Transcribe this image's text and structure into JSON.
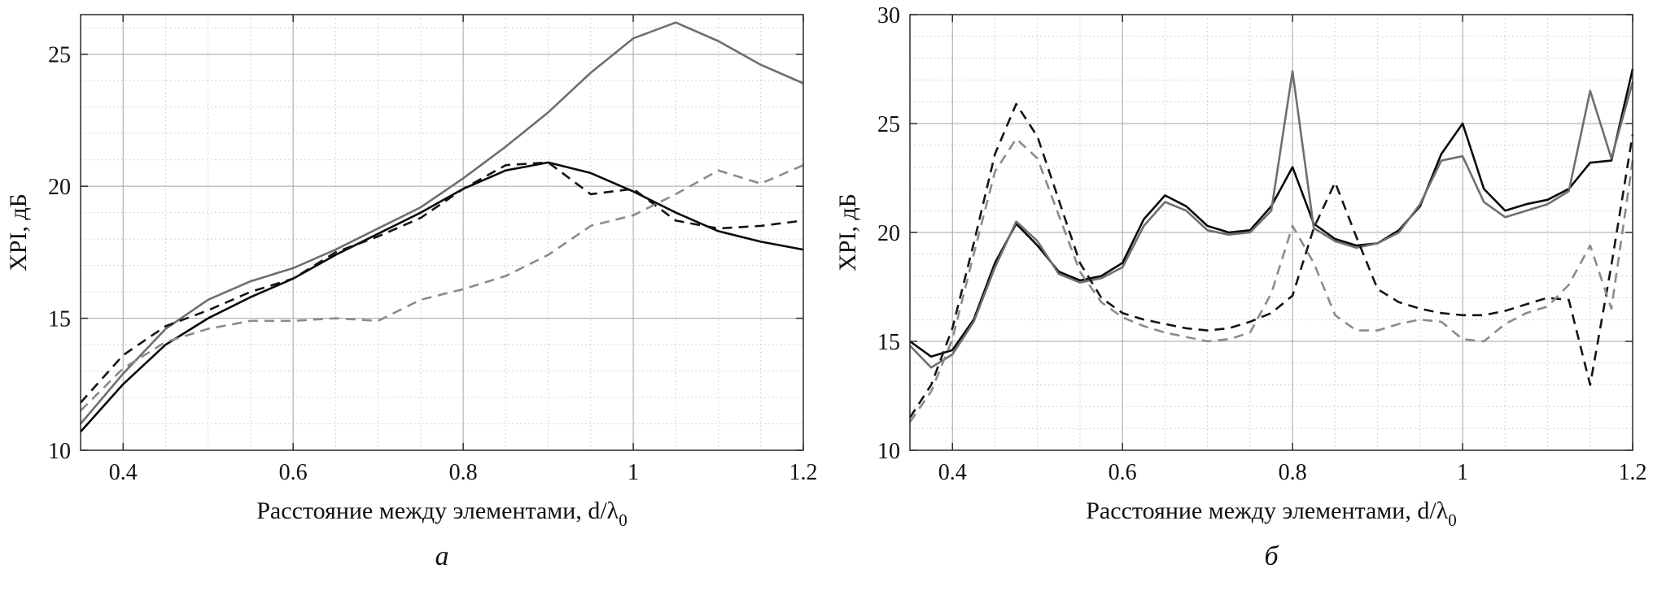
{
  "figure": {
    "description": "Two line plots of cross-polarization isolation (XPI) versus element spacing",
    "captions": [
      "а",
      "б"
    ]
  },
  "chart_data": [
    {
      "type": "line",
      "title": "",
      "caption": "а",
      "xlabel": "Расстояние между элементами, d/λ",
      "xlabel_sub": "0",
      "ylabel": "XPI, дБ",
      "xlim": [
        0.35,
        1.2
      ],
      "ylim": [
        10,
        26.5
      ],
      "xticks": [
        0.4,
        0.6,
        0.8,
        1,
        1.2
      ],
      "xtick_labels": [
        "0.4",
        "0.6",
        "0.8",
        "1",
        "1.2"
      ],
      "yticks": [
        10,
        15,
        20,
        25
      ],
      "ytick_labels": [
        "10",
        "15",
        "20",
        "25"
      ],
      "x_minor_step": 0.05,
      "y_minor_step": 1,
      "grid": "major-solid + minor-dotted",
      "legend": "none",
      "x": [
        0.35,
        0.4,
        0.45,
        0.5,
        0.55,
        0.6,
        0.65,
        0.7,
        0.75,
        0.8,
        0.85,
        0.9,
        0.95,
        1.0,
        1.05,
        1.1,
        1.15,
        1.2
      ],
      "series": [
        {
          "name": "gray-solid",
          "color": "#6f6f6f",
          "dash": "",
          "width": 2.6,
          "values": [
            11.0,
            12.9,
            14.6,
            15.7,
            16.4,
            16.9,
            17.6,
            18.4,
            19.2,
            20.3,
            21.5,
            22.8,
            24.3,
            25.6,
            26.2,
            25.5,
            24.6,
            23.9
          ]
        },
        {
          "name": "black-solid",
          "color": "#0a0a0a",
          "dash": "",
          "width": 2.6,
          "values": [
            10.7,
            12.5,
            14.0,
            15.0,
            15.8,
            16.5,
            17.4,
            18.2,
            19.0,
            19.9,
            20.6,
            20.9,
            20.5,
            19.8,
            19.0,
            18.3,
            17.9,
            17.6
          ]
        },
        {
          "name": "black-dashed",
          "color": "#141414",
          "dash": "12 8",
          "width": 2.6,
          "values": [
            11.8,
            13.6,
            14.7,
            15.3,
            16.0,
            16.5,
            17.5,
            18.1,
            18.8,
            19.9,
            20.8,
            20.9,
            19.7,
            19.9,
            18.7,
            18.4,
            18.5,
            18.7
          ]
        },
        {
          "name": "gray-dashed",
          "color": "#8b8b8b",
          "dash": "12 8",
          "width": 2.6,
          "values": [
            11.5,
            13.1,
            14.1,
            14.6,
            14.9,
            14.9,
            15.0,
            14.9,
            15.7,
            16.1,
            16.6,
            17.4,
            18.5,
            18.9,
            19.7,
            20.6,
            20.1,
            20.8
          ]
        }
      ]
    },
    {
      "type": "line",
      "title": "",
      "caption": "б",
      "xlabel": "Расстояние между элементами, d/λ",
      "xlabel_sub": "0",
      "ylabel": "XPI, дБ",
      "xlim": [
        0.35,
        1.2
      ],
      "ylim": [
        10,
        30
      ],
      "xticks": [
        0.4,
        0.6,
        0.8,
        1,
        1.2
      ],
      "xtick_labels": [
        "0.4",
        "0.6",
        "0.8",
        "1",
        "1.2"
      ],
      "yticks": [
        10,
        15,
        20,
        25,
        30
      ],
      "ytick_labels": [
        "10",
        "15",
        "20",
        "25",
        "30"
      ],
      "x_minor_step": 0.05,
      "y_minor_step": 1,
      "grid": "major-solid + minor-dotted",
      "legend": "none",
      "x": [
        0.35,
        0.375,
        0.4,
        0.425,
        0.45,
        0.475,
        0.5,
        0.525,
        0.55,
        0.575,
        0.6,
        0.625,
        0.65,
        0.675,
        0.7,
        0.725,
        0.75,
        0.775,
        0.8,
        0.825,
        0.85,
        0.875,
        0.9,
        0.925,
        0.95,
        0.975,
        1.0,
        1.025,
        1.05,
        1.075,
        1.1,
        1.125,
        1.15,
        1.175,
        1.2
      ],
      "series": [
        {
          "name": "black-solid",
          "color": "#0a0a0a",
          "dash": "",
          "width": 2.6,
          "values": [
            15.0,
            14.3,
            14.6,
            16.0,
            18.6,
            20.4,
            19.4,
            18.2,
            17.8,
            18.0,
            18.6,
            20.6,
            21.7,
            21.2,
            20.3,
            20.0,
            20.1,
            21.2,
            23.0,
            20.4,
            19.7,
            19.4,
            19.5,
            20.1,
            21.2,
            23.6,
            25.0,
            22.0,
            21.0,
            21.3,
            21.5,
            22.0,
            23.2,
            23.3,
            27.5
          ]
        },
        {
          "name": "gray-solid",
          "color": "#6f6f6f",
          "dash": "",
          "width": 2.6,
          "values": [
            14.8,
            13.8,
            14.4,
            15.9,
            18.4,
            20.5,
            19.6,
            18.1,
            17.7,
            17.9,
            18.4,
            20.3,
            21.4,
            21.0,
            20.1,
            19.9,
            20.0,
            21.0,
            27.4,
            20.2,
            19.6,
            19.3,
            19.5,
            20.0,
            21.3,
            23.3,
            23.5,
            21.4,
            20.7,
            21.0,
            21.3,
            21.9,
            26.5,
            23.4,
            26.9
          ]
        },
        {
          "name": "black-dashed",
          "color": "#141414",
          "dash": "12 8",
          "width": 2.6,
          "values": [
            11.5,
            13.0,
            15.6,
            19.5,
            23.6,
            25.9,
            24.4,
            21.5,
            18.6,
            17.0,
            16.3,
            16.0,
            15.8,
            15.6,
            15.5,
            15.6,
            15.9,
            16.3,
            17.1,
            20.2,
            22.3,
            19.8,
            17.4,
            16.8,
            16.5,
            16.3,
            16.2,
            16.2,
            16.4,
            16.7,
            17.0,
            16.9,
            13.0,
            18.5,
            24.5
          ]
        },
        {
          "name": "gray-dashed",
          "color": "#8b8b8b",
          "dash": "12 8",
          "width": 2.6,
          "values": [
            11.3,
            12.7,
            15.1,
            19.0,
            22.8,
            24.3,
            23.4,
            20.8,
            18.2,
            16.8,
            16.1,
            15.7,
            15.4,
            15.2,
            15.0,
            15.1,
            15.4,
            17.2,
            20.3,
            18.6,
            16.2,
            15.5,
            15.5,
            15.8,
            16.0,
            15.9,
            15.1,
            15.0,
            15.8,
            16.3,
            16.6,
            17.6,
            19.4,
            16.5,
            23.3
          ]
        }
      ]
    }
  ],
  "style": {
    "major_grid_color": "#a6a6a6",
    "minor_grid_color": "#c6c6c6",
    "axis_color": "#2b2b2b",
    "text_color": "#111111"
  }
}
